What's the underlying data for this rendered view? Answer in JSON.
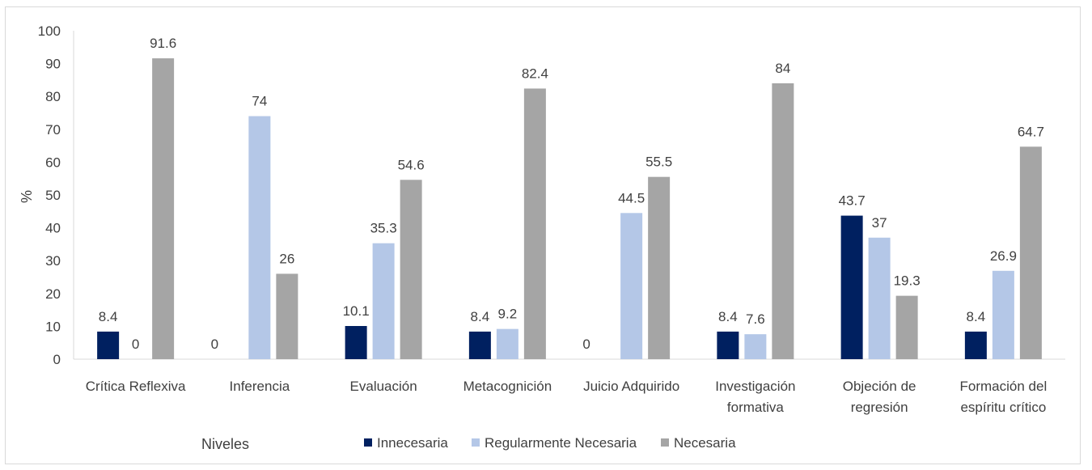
{
  "chart_data": {
    "type": "bar",
    "ylabel": "%",
    "xlabel": "Niveles",
    "ylim": [
      0,
      100
    ],
    "yticks": [
      0,
      10,
      20,
      30,
      40,
      50,
      60,
      70,
      80,
      90,
      100
    ],
    "grid": false,
    "legend_position": "bottom",
    "categories": [
      [
        "Crítica Reflexiva"
      ],
      [
        "Inferencia"
      ],
      [
        "Evaluación"
      ],
      [
        "Metacognición"
      ],
      [
        "Juicio Adquirido"
      ],
      [
        "Investigación",
        "formativa"
      ],
      [
        "Objeción de",
        "regresión"
      ],
      [
        "Formación del",
        "espíritu crítico"
      ]
    ],
    "series": [
      {
        "name": "Innecesaria",
        "color": "#002060",
        "values": [
          8.4,
          0,
          10.1,
          8.4,
          0,
          8.4,
          43.7,
          8.4
        ]
      },
      {
        "name": "Regularmente Necesaria",
        "color": "#b4c7e7",
        "values": [
          0,
          74,
          35.3,
          9.2,
          44.5,
          7.6,
          37,
          26.9
        ]
      },
      {
        "name": "Necesaria",
        "color": "#a5a5a5",
        "values": [
          91.6,
          26,
          54.6,
          82.4,
          55.5,
          84,
          19.3,
          64.7
        ]
      }
    ],
    "data_labels": [
      [
        "8.4",
        "0",
        "91.6"
      ],
      [
        "",
        "74",
        "26"
      ],
      [
        "10.1",
        "35.3",
        "54.6"
      ],
      [
        "8.4",
        "9.2",
        "82.4"
      ],
      [
        "",
        "44.5",
        "55.5"
      ],
      [
        "8.4",
        "7.6",
        "84"
      ],
      [
        "43.7",
        "37",
        "19.3"
      ],
      [
        "8.4",
        "26.9",
        "64.7"
      ]
    ],
    "zero_labels": [
      {
        "category": 1,
        "series": 0,
        "text": "0"
      },
      {
        "category": 4,
        "series": 0,
        "text": "0"
      }
    ]
  }
}
